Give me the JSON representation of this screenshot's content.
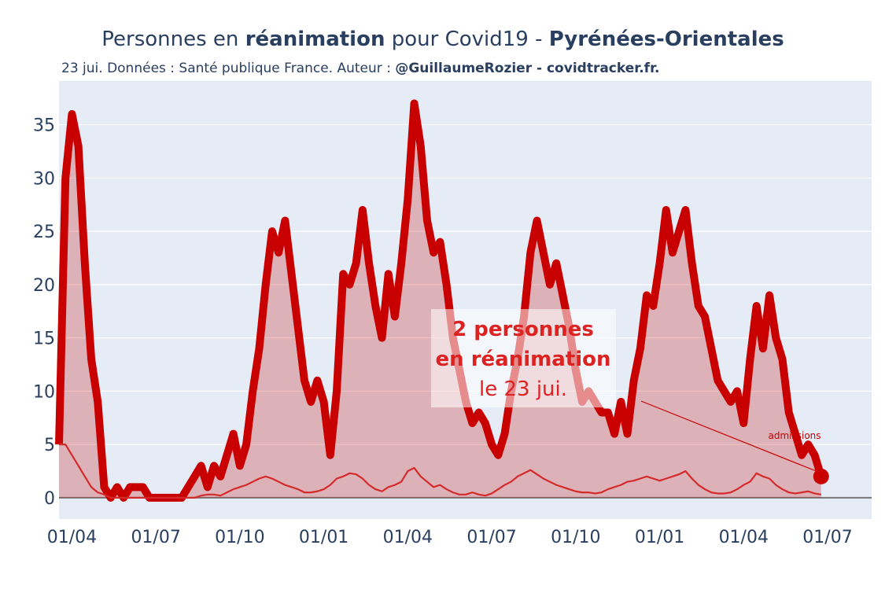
{
  "chart_data": {
    "type": "line",
    "title_parts": [
      "Personnes en ",
      "réanimation",
      " pour Covid19 - ",
      "Pyrénées-Orientales"
    ],
    "subtitle_parts": [
      "23 jui. Données : Santé publique France. Auteur : ",
      "@GuillaumeRozier - covidtracker.fr."
    ],
    "categories": [
      null,
      null,
      "01/04",
      null,
      null,
      null,
      null,
      null,
      null,
      null,
      null,
      null,
      null,
      null,
      null,
      "01/07",
      null,
      null,
      null,
      null,
      null,
      null,
      null,
      null,
      null,
      null,
      null,
      null,
      "01/10",
      null,
      null,
      null,
      null,
      null,
      null,
      null,
      null,
      null,
      null,
      null,
      null,
      "01/01",
      null,
      null,
      null,
      null,
      null,
      null,
      null,
      null,
      null,
      null,
      null,
      null,
      "01/04",
      null,
      null,
      null,
      null,
      null,
      null,
      null,
      null,
      null,
      null,
      null,
      null,
      "01/07",
      null,
      null,
      null,
      null,
      null,
      null,
      null,
      null,
      null,
      null,
      null,
      null,
      "01/10",
      null,
      null,
      null,
      null,
      null,
      null,
      null,
      null,
      null,
      null,
      null,
      null,
      "01/01",
      null,
      null,
      null,
      null,
      null,
      null,
      null,
      null,
      null,
      null,
      null,
      null,
      "01/04",
      null,
      null,
      null,
      null,
      null,
      null,
      null,
      null,
      null,
      null,
      null,
      null,
      "01/07"
    ],
    "series": [
      {
        "name": "réanimation",
        "color": "#c80000",
        "values": [
          5,
          30,
          36,
          33,
          22,
          13,
          9,
          1,
          0,
          1,
          0,
          1,
          1,
          1,
          0,
          0,
          0,
          0,
          0,
          0,
          1,
          2,
          3,
          1,
          3,
          2,
          4,
          6,
          3,
          5,
          10,
          14,
          20,
          25,
          23,
          26,
          21,
          16,
          11,
          9,
          11,
          9,
          4,
          10,
          21,
          20,
          22,
          27,
          22,
          18,
          15,
          21,
          17,
          22,
          28,
          37,
          33,
          26,
          23,
          24,
          20,
          15,
          12,
          9,
          7,
          8,
          7,
          5,
          4,
          6,
          10,
          13,
          17,
          23,
          26,
          23,
          20,
          22,
          19,
          16,
          12,
          9,
          10,
          9,
          8,
          8,
          6,
          9,
          6,
          11,
          14,
          19,
          18,
          22,
          27,
          23,
          25,
          27,
          22,
          18,
          17,
          14,
          11,
          10,
          9,
          10,
          7,
          13,
          18,
          14,
          19,
          15,
          13,
          8,
          6,
          4,
          5,
          4,
          2,
          null
        ]
      },
      {
        "name": "admissions",
        "color": "#d42a2a",
        "values": [
          5,
          5,
          4,
          3,
          2,
          1,
          0.5,
          0.3,
          0,
          0,
          0,
          0,
          0,
          0,
          0,
          0,
          0,
          0,
          0,
          0,
          0,
          0,
          0.2,
          0.3,
          0.3,
          0.2,
          0.5,
          0.8,
          1,
          1.2,
          1.5,
          1.8,
          2,
          1.8,
          1.5,
          1.2,
          1,
          0.8,
          0.5,
          0.5,
          0.6,
          0.8,
          1.2,
          1.8,
          2,
          2.3,
          2.2,
          1.8,
          1.2,
          0.8,
          0.6,
          1,
          1.2,
          1.5,
          2.5,
          2.8,
          2,
          1.5,
          1,
          1.2,
          0.8,
          0.5,
          0.3,
          0.3,
          0.5,
          0.3,
          0.2,
          0.4,
          0.8,
          1.2,
          1.5,
          2,
          2.3,
          2.6,
          2.2,
          1.8,
          1.5,
          1.2,
          1,
          0.8,
          0.6,
          0.5,
          0.5,
          0.4,
          0.5,
          0.8,
          1,
          1.2,
          1.5,
          1.6,
          1.8,
          2,
          1.8,
          1.6,
          1.8,
          2,
          2.2,
          2.5,
          1.8,
          1.2,
          0.8,
          0.5,
          0.4,
          0.4,
          0.5,
          0.8,
          1.2,
          1.5,
          2.3,
          2,
          1.8,
          1.2,
          0.8,
          0.5,
          0.4,
          0.5,
          0.6,
          0.4,
          0.3,
          null
        ]
      }
    ],
    "annotation_lines": [
      "2 personnes",
      "en réanimation",
      "le 23 jui."
    ],
    "ylim": [
      -2,
      39.1
    ],
    "yticks": [
      0,
      5,
      10,
      15,
      20,
      25,
      30,
      35
    ],
    "grid": true
  }
}
